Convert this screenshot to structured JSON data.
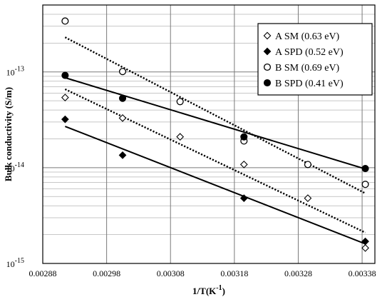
{
  "chart_data": {
    "type": "scatter",
    "title": "",
    "xlabel": "1/T(K",
    "xlabel_sup": "-1",
    "xlabel_close": ")",
    "ylabel": "Bulk conductivity (S/m)",
    "xlim": [
      0.00288,
      0.0034
    ],
    "ylim": [
      1e-15,
      5e-13
    ],
    "yscale": "log",
    "grid": true,
    "legend_position": "top-right",
    "x_ticks": [
      {
        "value": 0.00288,
        "label": "0.00288"
      },
      {
        "value": 0.00298,
        "label": "0.00298"
      },
      {
        "value": 0.00308,
        "label": "0.00308"
      },
      {
        "value": 0.00318,
        "label": "0.00318"
      },
      {
        "value": 0.00328,
        "label": "0.00328"
      },
      {
        "value": 0.00338,
        "label": "0.00338"
      }
    ],
    "y_ticks": [
      {
        "value": 1e-15,
        "base": "10",
        "exp": "-15"
      },
      {
        "value": 1e-14,
        "base": "10",
        "exp": "-14"
      },
      {
        "value": 1e-13,
        "base": "10",
        "exp": "-13"
      }
    ],
    "series": [
      {
        "name": "A SM (0.63 eV)",
        "marker": "diamond-open",
        "line_style": "dotted",
        "points": [
          {
            "x": 0.002915,
            "y": 5.4e-14
          },
          {
            "x": 0.003005,
            "y": 3.3e-14
          },
          {
            "x": 0.003095,
            "y": 2.1e-14
          },
          {
            "x": 0.003195,
            "y": 1.08e-14
          },
          {
            "x": 0.003295,
            "y": 4.8e-15
          },
          {
            "x": 0.003385,
            "y": 1.45e-15
          }
        ],
        "fit": {
          "x": [
            0.002915,
            0.003385
          ],
          "y": [
            6.6e-14,
            2.1e-15
          ]
        }
      },
      {
        "name": "A SPD (0.52 eV)",
        "marker": "diamond-filled",
        "line_style": "solid",
        "points": [
          {
            "x": 0.002915,
            "y": 3.2e-14
          },
          {
            "x": 0.003005,
            "y": 1.35e-14
          },
          {
            "x": 0.003195,
            "y": 4.8e-15
          },
          {
            "x": 0.003385,
            "y": 1.7e-15
          }
        ],
        "fit": {
          "x": [
            0.002915,
            0.003385
          ],
          "y": [
            2.7e-14,
            1.6e-15
          ]
        }
      },
      {
        "name": "B SM (0.69 eV)",
        "marker": "circle-open",
        "line_style": "dotted",
        "points": [
          {
            "x": 0.002915,
            "y": 3.4e-13
          },
          {
            "x": 0.003005,
            "y": 1.01e-13
          },
          {
            "x": 0.003095,
            "y": 4.9e-14
          },
          {
            "x": 0.003195,
            "y": 1.9e-14
          },
          {
            "x": 0.003295,
            "y": 1.08e-14
          },
          {
            "x": 0.003385,
            "y": 6.7e-15
          }
        ],
        "fit": {
          "x": [
            0.002915,
            0.003385
          ],
          "y": [
            2.3e-13,
            5.4e-15
          ]
        }
      },
      {
        "name": "B SPD (0.41 eV)",
        "marker": "circle-filled",
        "line_style": "solid",
        "points": [
          {
            "x": 0.002915,
            "y": 9.2e-14
          },
          {
            "x": 0.003005,
            "y": 5.3e-14
          },
          {
            "x": 0.003195,
            "y": 2.1e-14
          },
          {
            "x": 0.003385,
            "y": 9.8e-15
          }
        ],
        "fit": {
          "x": [
            0.002915,
            0.003385
          ],
          "y": [
            8.7e-14,
            9.7e-15
          ]
        }
      }
    ]
  }
}
